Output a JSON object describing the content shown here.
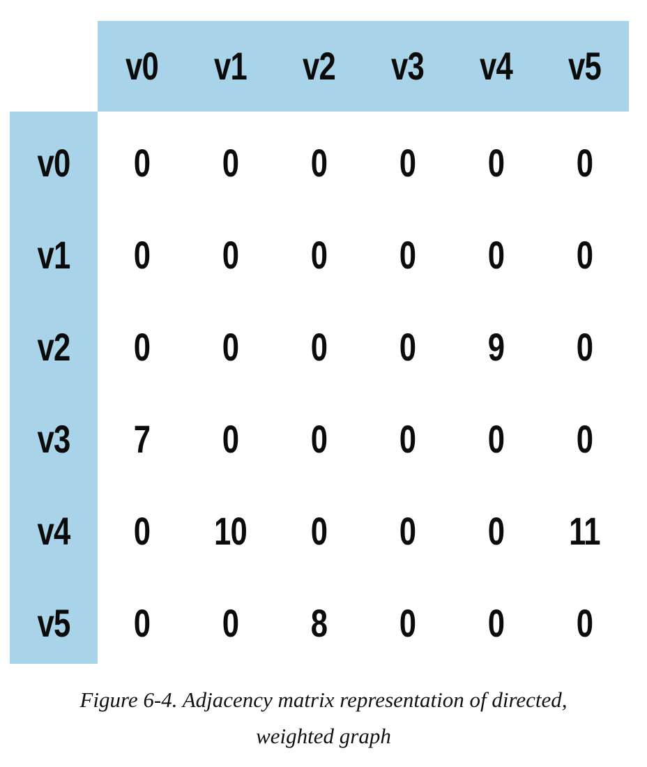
{
  "matrix": {
    "column_headers": [
      "v0",
      "v1",
      "v2",
      "v3",
      "v4",
      "v5"
    ],
    "row_headers": [
      "v0",
      "v1",
      "v2",
      "v3",
      "v4",
      "v5"
    ],
    "rows": [
      [
        "0",
        "0",
        "0",
        "0",
        "0",
        "0"
      ],
      [
        "0",
        "0",
        "0",
        "0",
        "0",
        "0"
      ],
      [
        "0",
        "0",
        "0",
        "0",
        "9",
        "0"
      ],
      [
        "7",
        "0",
        "0",
        "0",
        "0",
        "0"
      ],
      [
        "0",
        "10",
        "0",
        "0",
        "0",
        "11"
      ],
      [
        "0",
        "0",
        "8",
        "0",
        "0",
        "0"
      ]
    ],
    "header_color": "#a9d3e8"
  },
  "caption": {
    "line1": "Figure 6-4. Adjacency matrix representation of directed,",
    "line2": "weighted graph"
  }
}
